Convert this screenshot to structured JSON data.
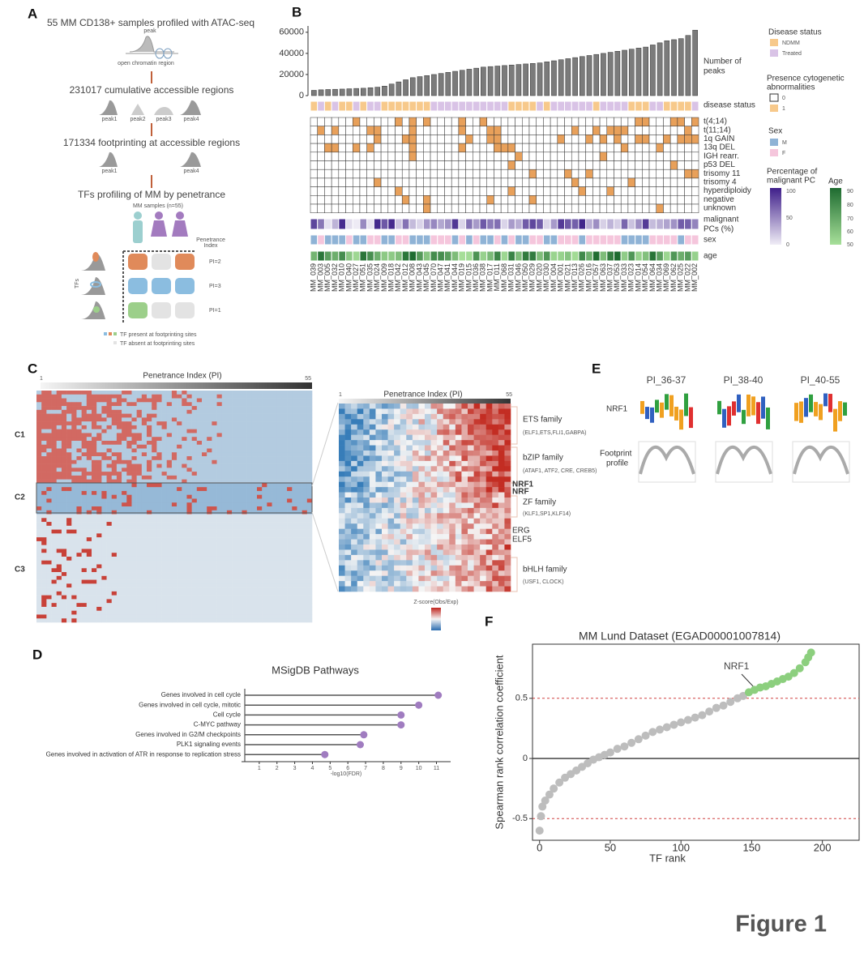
{
  "figure_title": "Figure 1",
  "panel_a": {
    "label": "A",
    "title": "55 MM CD138+ samples profiled with ATAC-seq",
    "peak": "peak",
    "open_region": "open chromatin region",
    "step2": "231017 cumulative accessible regions",
    "step2_peaks": [
      "peak1",
      "peak2",
      "peak3",
      "peak4"
    ],
    "step3": "171334 footprinting at accessible regions",
    "step3_peaks": [
      "peak1",
      "peak4"
    ],
    "step4": "TFs profiling of MM by penetrance",
    "samples": "MM samples (n=55)",
    "penetrance": [
      "Penetrance",
      "Index"
    ],
    "tfs": "TFs",
    "pi_labels": [
      "PI=2",
      "PI=3",
      "PI=1"
    ],
    "legend": [
      "TF present at footprinting sites",
      "TF absent at footprinting sites"
    ]
  },
  "panel_b": {
    "label": "B",
    "disease_track": "disease status",
    "cyto_tracks": [
      "t(4;14)",
      "t(11;14)",
      "1q GAIN",
      "13q DEL",
      "IGH rearr.",
      "p53 DEL",
      "trisomy 11",
      "trisomy 4",
      "hyperdiploidy",
      "negative",
      "unknown"
    ],
    "malignant_track": [
      "malignant",
      "PCs (%)"
    ],
    "sex_track": "sex",
    "age_track": "age",
    "legend": {
      "disease_title": "Disease status",
      "disease_items": [
        "NDMM",
        "Treated"
      ],
      "cyto_title": [
        "Presence cytogenetic",
        "abnormalities"
      ],
      "cyto_items": [
        0,
        1
      ],
      "sex_title": "Sex",
      "sex_items": [
        "M",
        "F"
      ],
      "pc_title": [
        "Percentage of",
        "malignant PC"
      ],
      "pc_ticks": [
        100,
        50,
        0
      ],
      "age_title": "Age",
      "age_ticks": [
        90,
        80,
        70,
        60,
        50
      ]
    }
  },
  "panel_c": {
    "label": "C",
    "axis_title": "Penetrance Index (PI)",
    "axis_ends": [
      1,
      55
    ],
    "clusters": [
      "C1",
      "C2",
      "C3"
    ],
    "zoom_axis_title": "Penetrance Index (PI)",
    "zoom_axis_ends": [
      1,
      55
    ],
    "families": [
      {
        "name": "ETS family",
        "members": "(ELF1,ETS,FLI1,GABPA)"
      },
      {
        "name": "bZIP family",
        "members": "(ATAF1, ATF2, CRE, CREB5)"
      },
      {
        "name": "ZF family",
        "members": "(KLF1,SP1,KLF14)"
      },
      {
        "name": "bHLH family",
        "members": "(USF1, CLOCK)"
      }
    ],
    "highlight": [
      "NRF1",
      "NRF"
    ],
    "singles": [
      "ERG",
      "ELF5"
    ],
    "colorbar_title": "Z-score(Obs/Exp)"
  },
  "panel_d": {
    "label": "D"
  },
  "panel_e": {
    "label": "E",
    "columns": [
      "PI_36-37",
      "PI_38-40",
      "PI_40-55"
    ],
    "row_tf": "NRF1",
    "row_profile": [
      "Footprint",
      "profile"
    ]
  },
  "panel_f": {
    "label": "F",
    "annotation": "NRF1"
  },
  "chart_data": [
    {
      "type": "bar",
      "ylabel": [
        "Number of",
        "peaks"
      ],
      "color": "#7b7b7b",
      "categories": [
        "MM_039",
        "MM_003",
        "MM_005",
        "MM_032",
        "MM_010",
        "MM_040",
        "MM_027",
        "MM_051",
        "MM_035",
        "MM_024",
        "MM_009",
        "MM_018",
        "MM_042",
        "MM_012",
        "MM_008",
        "MM_043",
        "MM_045",
        "MM_070",
        "MM_047",
        "MM_041",
        "MM_044",
        "MM_019",
        "MM_015",
        "MM_036",
        "MM_038",
        "MM_017",
        "MM_011",
        "MM_068",
        "MM_031",
        "MM_046",
        "MM_050",
        "MM_029",
        "MM_020",
        "MM_030",
        "MM_004",
        "MM_001",
        "MM_021",
        "MM_013",
        "MM_026",
        "MM_016",
        "MM_057",
        "MM_063",
        "MM_037",
        "MM_053",
        "MM_033",
        "MM_023",
        "MM_014",
        "MM_054",
        "MM_064",
        "MM_034",
        "MM_069",
        "MM_062",
        "MM_025",
        "MM_022",
        "MM_002"
      ],
      "values": [
        5000,
        5500,
        5800,
        6000,
        6200,
        6500,
        6800,
        7000,
        7500,
        8000,
        9000,
        11000,
        13000,
        15000,
        17000,
        18000,
        19000,
        20000,
        21000,
        22000,
        23000,
        24000,
        25000,
        26000,
        27000,
        27500,
        28000,
        28500,
        29000,
        29500,
        30000,
        30500,
        31000,
        32000,
        33000,
        34000,
        35000,
        36000,
        37000,
        38000,
        39000,
        40000,
        41000,
        42000,
        43000,
        44000,
        45000,
        46000,
        48000,
        50000,
        52000,
        53000,
        54000,
        57000,
        62000
      ],
      "ylim": [
        0,
        66000
      ],
      "yticks": [
        0,
        20000,
        40000,
        60000
      ]
    },
    {
      "type": "lollipop",
      "title": "MSigDB Pathways",
      "xlabel": "-log10(FDR)",
      "color": "#a07cc0",
      "categories": [
        "Genes involved in cell cycle",
        "Genes involved in cell cycle, mitotic",
        "Cell cycle",
        "C-MYC pathway",
        "Genes involved in G2/M checkpoints",
        "PLK1 signaling events",
        "Genes involved in activation of ATR in response to replication stress"
      ],
      "values": [
        11.1,
        10.0,
        9.0,
        9.0,
        6.9,
        6.7,
        4.7
      ],
      "xlim": [
        0,
        11.8
      ],
      "xticks": [
        1,
        2,
        3,
        4,
        5,
        6,
        7,
        8,
        9,
        10,
        11
      ]
    },
    {
      "type": "scatter",
      "title": "MM Lund Dataset (EGAD00001007814)",
      "xlabel": "TF rank",
      "ylabel": "Spearman rank correlation coefficient",
      "xlim": [
        -5,
        226
      ],
      "xticks": [
        0,
        50,
        100,
        150,
        200
      ],
      "ylim": [
        -0.68,
        0.95
      ],
      "yticks": [
        -0.5,
        0,
        0.5
      ],
      "hlines": [
        {
          "value": 0.5,
          "color": "#d04040",
          "dashed": true
        },
        {
          "value": 0,
          "color": "#333333",
          "dashed": false
        },
        {
          "value": -0.5,
          "color": "#d04040",
          "dashed": true
        }
      ],
      "series": [
        {
          "color": "#bdbdbd",
          "x": [
            0,
            1,
            2,
            4,
            7,
            10,
            14,
            18,
            22,
            26,
            30,
            34,
            38,
            42,
            46,
            50,
            55,
            60,
            65,
            70,
            75,
            80,
            85,
            90,
            95,
            100,
            105,
            110,
            115,
            120,
            125,
            130,
            135,
            140,
            144
          ],
          "values": [
            -0.6,
            -0.48,
            -0.4,
            -0.35,
            -0.3,
            -0.25,
            -0.2,
            -0.16,
            -0.13,
            -0.1,
            -0.07,
            -0.04,
            -0.01,
            0.01,
            0.03,
            0.05,
            0.08,
            0.1,
            0.13,
            0.16,
            0.19,
            0.22,
            0.24,
            0.26,
            0.28,
            0.3,
            0.32,
            0.34,
            0.36,
            0.39,
            0.42,
            0.44,
            0.47,
            0.5,
            0.52
          ]
        },
        {
          "color": "#8ccf7e",
          "x": [
            148,
            152,
            156,
            160,
            164,
            168,
            172,
            176,
            180,
            184,
            188,
            190,
            192
          ],
          "values": [
            0.55,
            0.57,
            0.59,
            0.6,
            0.62,
            0.64,
            0.66,
            0.68,
            0.71,
            0.75,
            0.8,
            0.84,
            0.88
          ]
        }
      ]
    }
  ]
}
